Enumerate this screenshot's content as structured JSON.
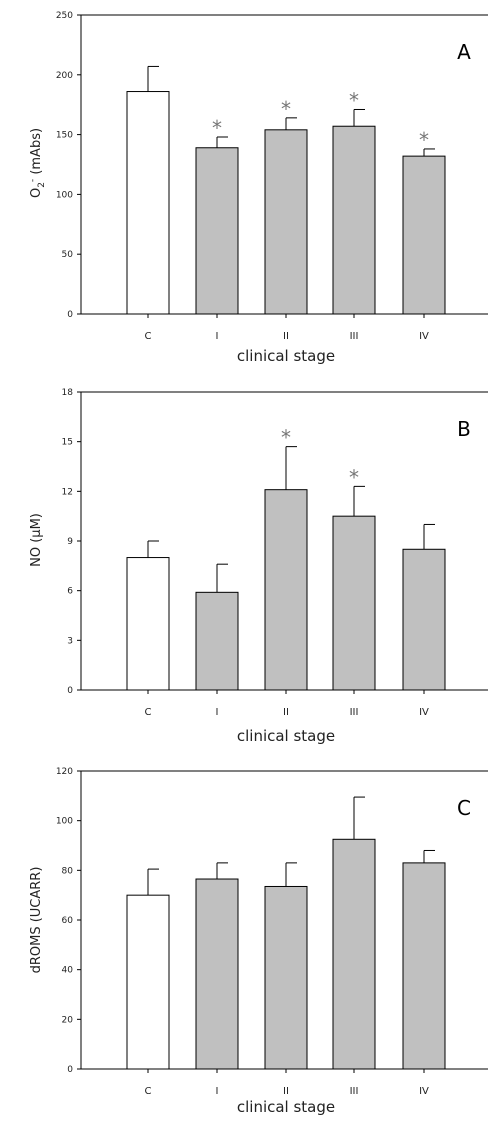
{
  "chart_data": [
    {
      "type": "bar",
      "panel_label": "A",
      "categories": [
        "C",
        "I",
        "II",
        "III",
        "IV"
      ],
      "values": [
        186,
        139,
        154,
        157,
        132
      ],
      "errors": [
        21,
        9,
        10,
        14,
        6
      ],
      "significant": [
        false,
        true,
        true,
        true,
        true
      ],
      "ylabel_main": "O",
      "ylabel_sub": "2",
      "ylabel_sup": "-",
      "ylabel_rest": " (mAbs)",
      "xlabel": "clinical stage",
      "ylim": [
        0,
        250
      ],
      "yticks": [
        0,
        50,
        100,
        150,
        200,
        250
      ],
      "star": "*",
      "bar_colors": [
        "#ffffff",
        "#c0c0c0",
        "#c0c0c0",
        "#c0c0c0",
        "#c0c0c0"
      ]
    },
    {
      "type": "bar",
      "panel_label": "B",
      "categories": [
        "C",
        "I",
        "II",
        "III",
        "IV"
      ],
      "values": [
        8.0,
        5.9,
        12.1,
        10.5,
        8.5
      ],
      "errors": [
        1.0,
        1.7,
        2.6,
        1.8,
        1.5
      ],
      "significant": [
        false,
        false,
        true,
        true,
        false
      ],
      "ylabel_main": "NO (μM)",
      "xlabel": "clinical stage",
      "ylim": [
        0,
        18
      ],
      "yticks": [
        0,
        3,
        6,
        9,
        12,
        15,
        18
      ],
      "star": "*",
      "bar_colors": [
        "#ffffff",
        "#c0c0c0",
        "#c0c0c0",
        "#c0c0c0",
        "#c0c0c0"
      ]
    },
    {
      "type": "bar",
      "panel_label": "C",
      "categories": [
        "C",
        "I",
        "II",
        "III",
        "IV"
      ],
      "values": [
        70,
        76.5,
        73.5,
        92.5,
        83
      ],
      "errors": [
        10.5,
        6.5,
        9.5,
        17,
        5
      ],
      "significant": [
        false,
        false,
        false,
        false,
        false
      ],
      "ylabel_main": "dROMS (UCARR)",
      "xlabel": "clinical stage",
      "ylim": [
        0,
        120
      ],
      "yticks": [
        0,
        20,
        40,
        60,
        80,
        100,
        120
      ],
      "star": "*",
      "bar_colors": [
        "#ffffff",
        "#c0c0c0",
        "#c0c0c0",
        "#c0c0c0",
        "#c0c0c0"
      ]
    }
  ]
}
